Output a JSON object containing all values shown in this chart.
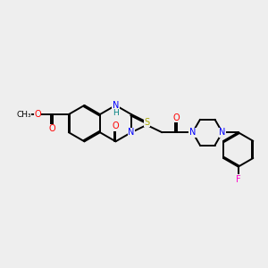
{
  "bg_color": "#eeeeee",
  "atom_colors": {
    "N": "#0000ff",
    "O": "#ff0000",
    "S": "#aaaa00",
    "F": "#ff00cc",
    "C": "#000000",
    "H": "#008080"
  },
  "bond_color": "#000000",
  "bond_width": 1.4,
  "BL": 0.68,
  "xlim": [
    0,
    10
  ],
  "ylim": [
    0,
    10
  ]
}
